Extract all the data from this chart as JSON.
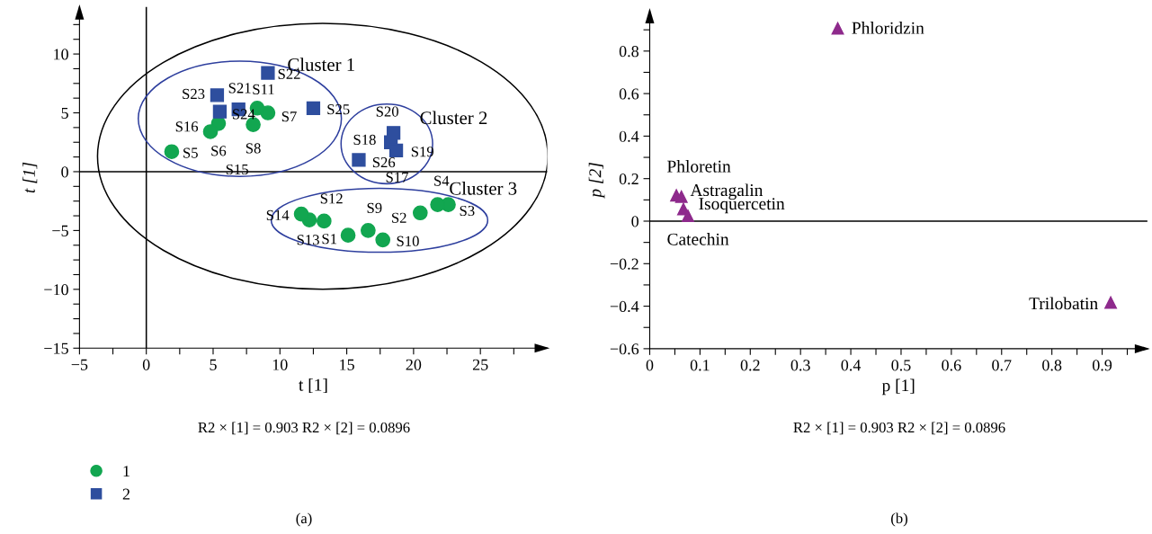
{
  "chart_data": [
    {
      "type": "scatter",
      "xlabel": "t [1]",
      "ylabel": "t [1]",
      "xlim": [
        -5,
        30
      ],
      "ylim": [
        -15,
        14
      ],
      "xticks": [
        {
          "value": -5,
          "label": "−5"
        },
        {
          "value": -2.5,
          "label": null
        },
        0,
        {
          "value": 2.5,
          "label": null
        },
        5,
        {
          "value": 7.5,
          "label": null
        },
        10,
        {
          "value": 12.5,
          "label": null
        },
        15,
        {
          "value": 17.5,
          "label": null
        },
        20,
        {
          "value": 22.5,
          "label": null
        },
        25,
        {
          "value": 27.5,
          "label": null
        }
      ],
      "yticks": [
        {
          "value": -15,
          "label": "−15"
        },
        {
          "value": -13.75,
          "label": null
        },
        {
          "value": -12.5,
          "label": null
        },
        {
          "value": -11.25,
          "label": null
        },
        {
          "value": -10,
          "label": "−10"
        },
        {
          "value": -8.75,
          "label": null
        },
        {
          "value": -7.5,
          "label": null
        },
        {
          "value": -6.25,
          "label": null
        },
        {
          "value": -5,
          "label": "−5"
        },
        {
          "value": -3.75,
          "label": null
        },
        {
          "value": -2.5,
          "label": null
        },
        {
          "value": -1.25,
          "label": null
        },
        0,
        {
          "value": 1.25,
          "label": null
        },
        {
          "value": 2.5,
          "label": null
        },
        {
          "value": 3.75,
          "label": null
        },
        5,
        {
          "value": 6.25,
          "label": null
        },
        {
          "value": 7.5,
          "label": null
        },
        {
          "value": 8.75,
          "label": null
        },
        10,
        {
          "value": 11.25,
          "label": null
        },
        {
          "value": 12.5,
          "label": null
        }
      ],
      "grid": false,
      "legend": "bottom left",
      "ref_lines": [
        {
          "axis": "x",
          "value": 0,
          "color": "#000000"
        },
        {
          "axis": "y",
          "value": 0,
          "color": "#000000"
        }
      ],
      "series": [
        {
          "name": "1",
          "color": "#12a650",
          "marker": "circle",
          "x": [
            15.1,
            20.5,
            22.6,
            21.8,
            1.9,
            5.4,
            9.1,
            8.0,
            16.6,
            17.7,
            8.3,
            13.3,
            12.2,
            11.6,
            4.8
          ],
          "values": [
            -5.4,
            -3.5,
            -2.8,
            -2.8,
            1.7,
            4.1,
            5.0,
            4.0,
            -5.0,
            -5.8,
            5.4,
            -4.2,
            -4.1,
            -3.6,
            3.4
          ]
        },
        {
          "name": "2",
          "color": "#2e4e9e",
          "marker": "square",
          "x": [
            18.3,
            18.7,
            18.5,
            6.9,
            9.1,
            5.3,
            5.5,
            12.5,
            15.9
          ],
          "values": [
            2.5,
            1.8,
            3.3,
            5.3,
            8.4,
            6.5,
            5.1,
            5.4,
            1.0
          ]
        }
      ],
      "annotations": [
        {
          "text": "S1",
          "x": 15.1,
          "y": -5.4
        },
        {
          "text": "S2",
          "x": 20.5,
          "y": -3.5
        },
        {
          "text": "S3",
          "x": 22.6,
          "y": -2.8
        },
        {
          "text": "S4",
          "x": 21.8,
          "y": -2.8
        },
        {
          "text": "S5",
          "x": 1.9,
          "y": 1.7
        },
        {
          "text": "S6",
          "x": 5.4,
          "y": 4.1
        },
        {
          "text": "S7",
          "x": 9.1,
          "y": 5.0
        },
        {
          "text": "S8",
          "x": 8.0,
          "y": 4.0
        },
        {
          "text": "S9",
          "x": 16.6,
          "y": -5.0
        },
        {
          "text": "S10",
          "x": 17.7,
          "y": -5.8
        },
        {
          "text": "S11",
          "x": 8.3,
          "y": 5.4
        },
        {
          "text": "S12",
          "x": 13.3,
          "y": -4.2
        },
        {
          "text": "S13",
          "x": 12.2,
          "y": -4.1
        },
        {
          "text": "S14",
          "x": 11.6,
          "y": -3.6
        },
        "S15",
        {
          "text": "S16",
          "x": 4.8,
          "y": 3.4
        },
        "S17",
        {
          "text": "S18",
          "x": 18.3,
          "y": 2.5
        },
        {
          "text": "S19",
          "x": 18.7,
          "y": 1.8
        },
        {
          "text": "S20",
          "x": 18.5,
          "y": 3.3
        },
        {
          "text": "S21",
          "x": 6.9,
          "y": 5.3
        },
        {
          "text": "S22",
          "x": 9.1,
          "y": 8.4
        },
        {
          "text": "S23",
          "x": 5.3,
          "y": 6.5
        },
        {
          "text": "S24",
          "x": 5.5,
          "y": 5.1
        },
        {
          "text": "S25",
          "x": 12.5,
          "y": 5.4
        },
        {
          "text": "S26",
          "x": 15.9,
          "y": 1.0
        },
        "Cluster 1",
        "Cluster 2",
        "Cluster 3",
        "R2 × [1] = 0.903 R2 × [2] = 0.0896",
        "(a)"
      ]
    },
    {
      "type": "scatter",
      "xlabel": "p [1]",
      "ylabel": "p [2]",
      "xlim": [
        0,
        0.99
      ],
      "ylim": [
        -0.6,
        0.99
      ],
      "xticks": [
        0,
        {
          "value": 0.05,
          "label": null
        },
        0.1,
        {
          "value": 0.15,
          "label": null
        },
        0.2,
        {
          "value": 0.25,
          "label": null
        },
        0.3,
        {
          "value": 0.35,
          "label": null
        },
        0.4,
        {
          "value": 0.45,
          "label": null
        },
        0.5,
        {
          "value": 0.55,
          "label": null
        },
        0.6,
        {
          "value": 0.65,
          "label": null
        },
        0.7,
        {
          "value": 0.75,
          "label": null
        },
        0.8,
        {
          "value": 0.85,
          "label": null
        },
        0.9,
        {
          "value": 0.95,
          "label": null
        }
      ],
      "yticks": [
        {
          "value": -0.6,
          "label": "−0.6"
        },
        {
          "value": -0.5,
          "label": null
        },
        {
          "value": -0.4,
          "label": "−0.4"
        },
        {
          "value": -0.3,
          "label": null
        },
        {
          "value": -0.2,
          "label": "−0.2"
        },
        {
          "value": -0.1,
          "label": null
        },
        0,
        {
          "value": 0.1,
          "label": null
        },
        0.2,
        {
          "value": 0.3,
          "label": null
        },
        0.4,
        {
          "value": 0.5,
          "label": null
        },
        0.6,
        {
          "value": 0.7,
          "label": null
        },
        0.8,
        {
          "value": 0.9,
          "label": null
        }
      ],
      "grid": false,
      "ref_lines": [
        {
          "axis": "y",
          "value": 0,
          "color": "#000000"
        }
      ],
      "series": [
        {
          "color": "#8e2a8c",
          "marker": "triangle",
          "x": [
            0.374,
            0.053,
            0.063,
            0.067,
            0.076,
            0.917
          ],
          "values": [
            0.907,
            0.121,
            0.115,
            0.057,
            0.025,
            -0.383
          ]
        }
      ],
      "annotations": [
        {
          "text": "Phloridzin",
          "x": 0.374,
          "y": 0.907
        },
        {
          "text": "Phloretin",
          "x": 0.053,
          "y": 0.121
        },
        {
          "text": "Astragalin",
          "x": 0.063,
          "y": 0.115
        },
        {
          "text": "Isoquercetin",
          "x": 0.067,
          "y": 0.057
        },
        {
          "text": "Catechin",
          "x": 0.076,
          "y": 0.025
        },
        {
          "text": "Trilobatin",
          "x": 0.917,
          "y": -0.383
        },
        "R2 × [1] = 0.903 R2 × [2] = 0.0896",
        "(b)"
      ]
    }
  ]
}
